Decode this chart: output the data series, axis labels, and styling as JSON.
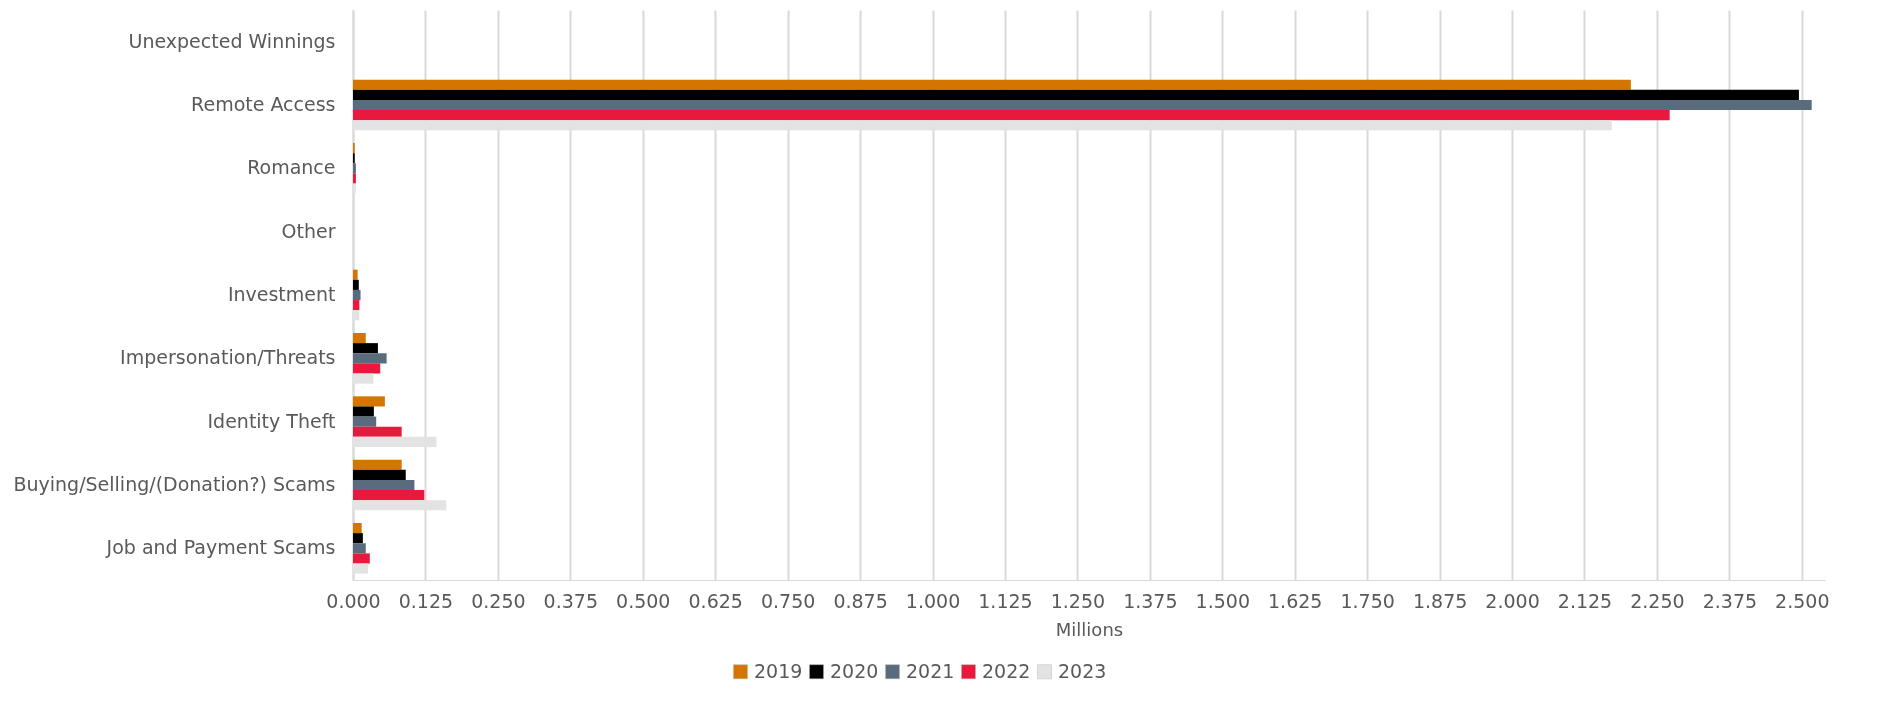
{
  "chart_data": {
    "type": "bar",
    "orientation": "horizontal",
    "xlabel": "Millions",
    "categories": [
      "Unexpected Winnings",
      "Remote Access",
      "Romance",
      "Other",
      "Investment",
      "Impersonation/Threats",
      "Identity Theft",
      "Buying/Selling/(Donation?) Scams",
      "Job and Payment Scams"
    ],
    "series": [
      {
        "name": "2019",
        "color": "#d47500",
        "values": [
          0,
          2.205,
          0.003,
          0,
          0.008,
          0.022,
          0.055,
          0.084,
          0.015
        ]
      },
      {
        "name": "2020",
        "color": "#000000",
        "values": [
          0,
          2.495,
          0.003,
          0,
          0.01,
          0.043,
          0.036,
          0.091,
          0.017
        ]
      },
      {
        "name": "2021",
        "color": "#5a6b7d",
        "values": [
          0,
          2.517,
          0.005,
          0,
          0.013,
          0.058,
          0.04,
          0.106,
          0.022
        ]
      },
      {
        "name": "2022",
        "color": "#e8193c",
        "values": [
          0,
          2.272,
          0.005,
          0,
          0.011,
          0.047,
          0.084,
          0.123,
          0.029
        ]
      },
      {
        "name": "2023",
        "color": "#e3e3e3",
        "values": [
          0,
          2.172,
          0.005,
          0,
          0.011,
          0.035,
          0.144,
          0.161,
          0.026
        ]
      }
    ],
    "xlim": [
      0,
      2.54
    ],
    "xticks": [
      {
        "value": 0,
        "label": "0.000"
      },
      {
        "value": 0.125,
        "label": "0.125"
      },
      {
        "value": 0.25,
        "label": "0.250"
      },
      {
        "value": 0.375,
        "label": "0.375"
      },
      {
        "value": 0.5,
        "label": "0.500"
      },
      {
        "value": 0.625,
        "label": "0.625"
      },
      {
        "value": 0.75,
        "label": "0.750"
      },
      {
        "value": 0.875,
        "label": "0.875"
      },
      {
        "value": 1,
        "label": "1.000"
      },
      {
        "value": 1.125,
        "label": "1.125"
      },
      {
        "value": 1.25,
        "label": "1.250"
      },
      {
        "value": 1.375,
        "label": "1.375"
      },
      {
        "value": 1.5,
        "label": "1.500"
      },
      {
        "value": 1.625,
        "label": "1.625"
      },
      {
        "value": 1.75,
        "label": "1.750"
      },
      {
        "value": 1.875,
        "label": "1.875"
      },
      {
        "value": 2,
        "label": "2.000"
      },
      {
        "value": 2.125,
        "label": "2.125"
      },
      {
        "value": 2.25,
        "label": "2.250"
      },
      {
        "value": 2.375,
        "label": "2.375"
      },
      {
        "value": 2.5,
        "label": "2.500"
      }
    ],
    "grid": "x",
    "legend": "bottom"
  }
}
